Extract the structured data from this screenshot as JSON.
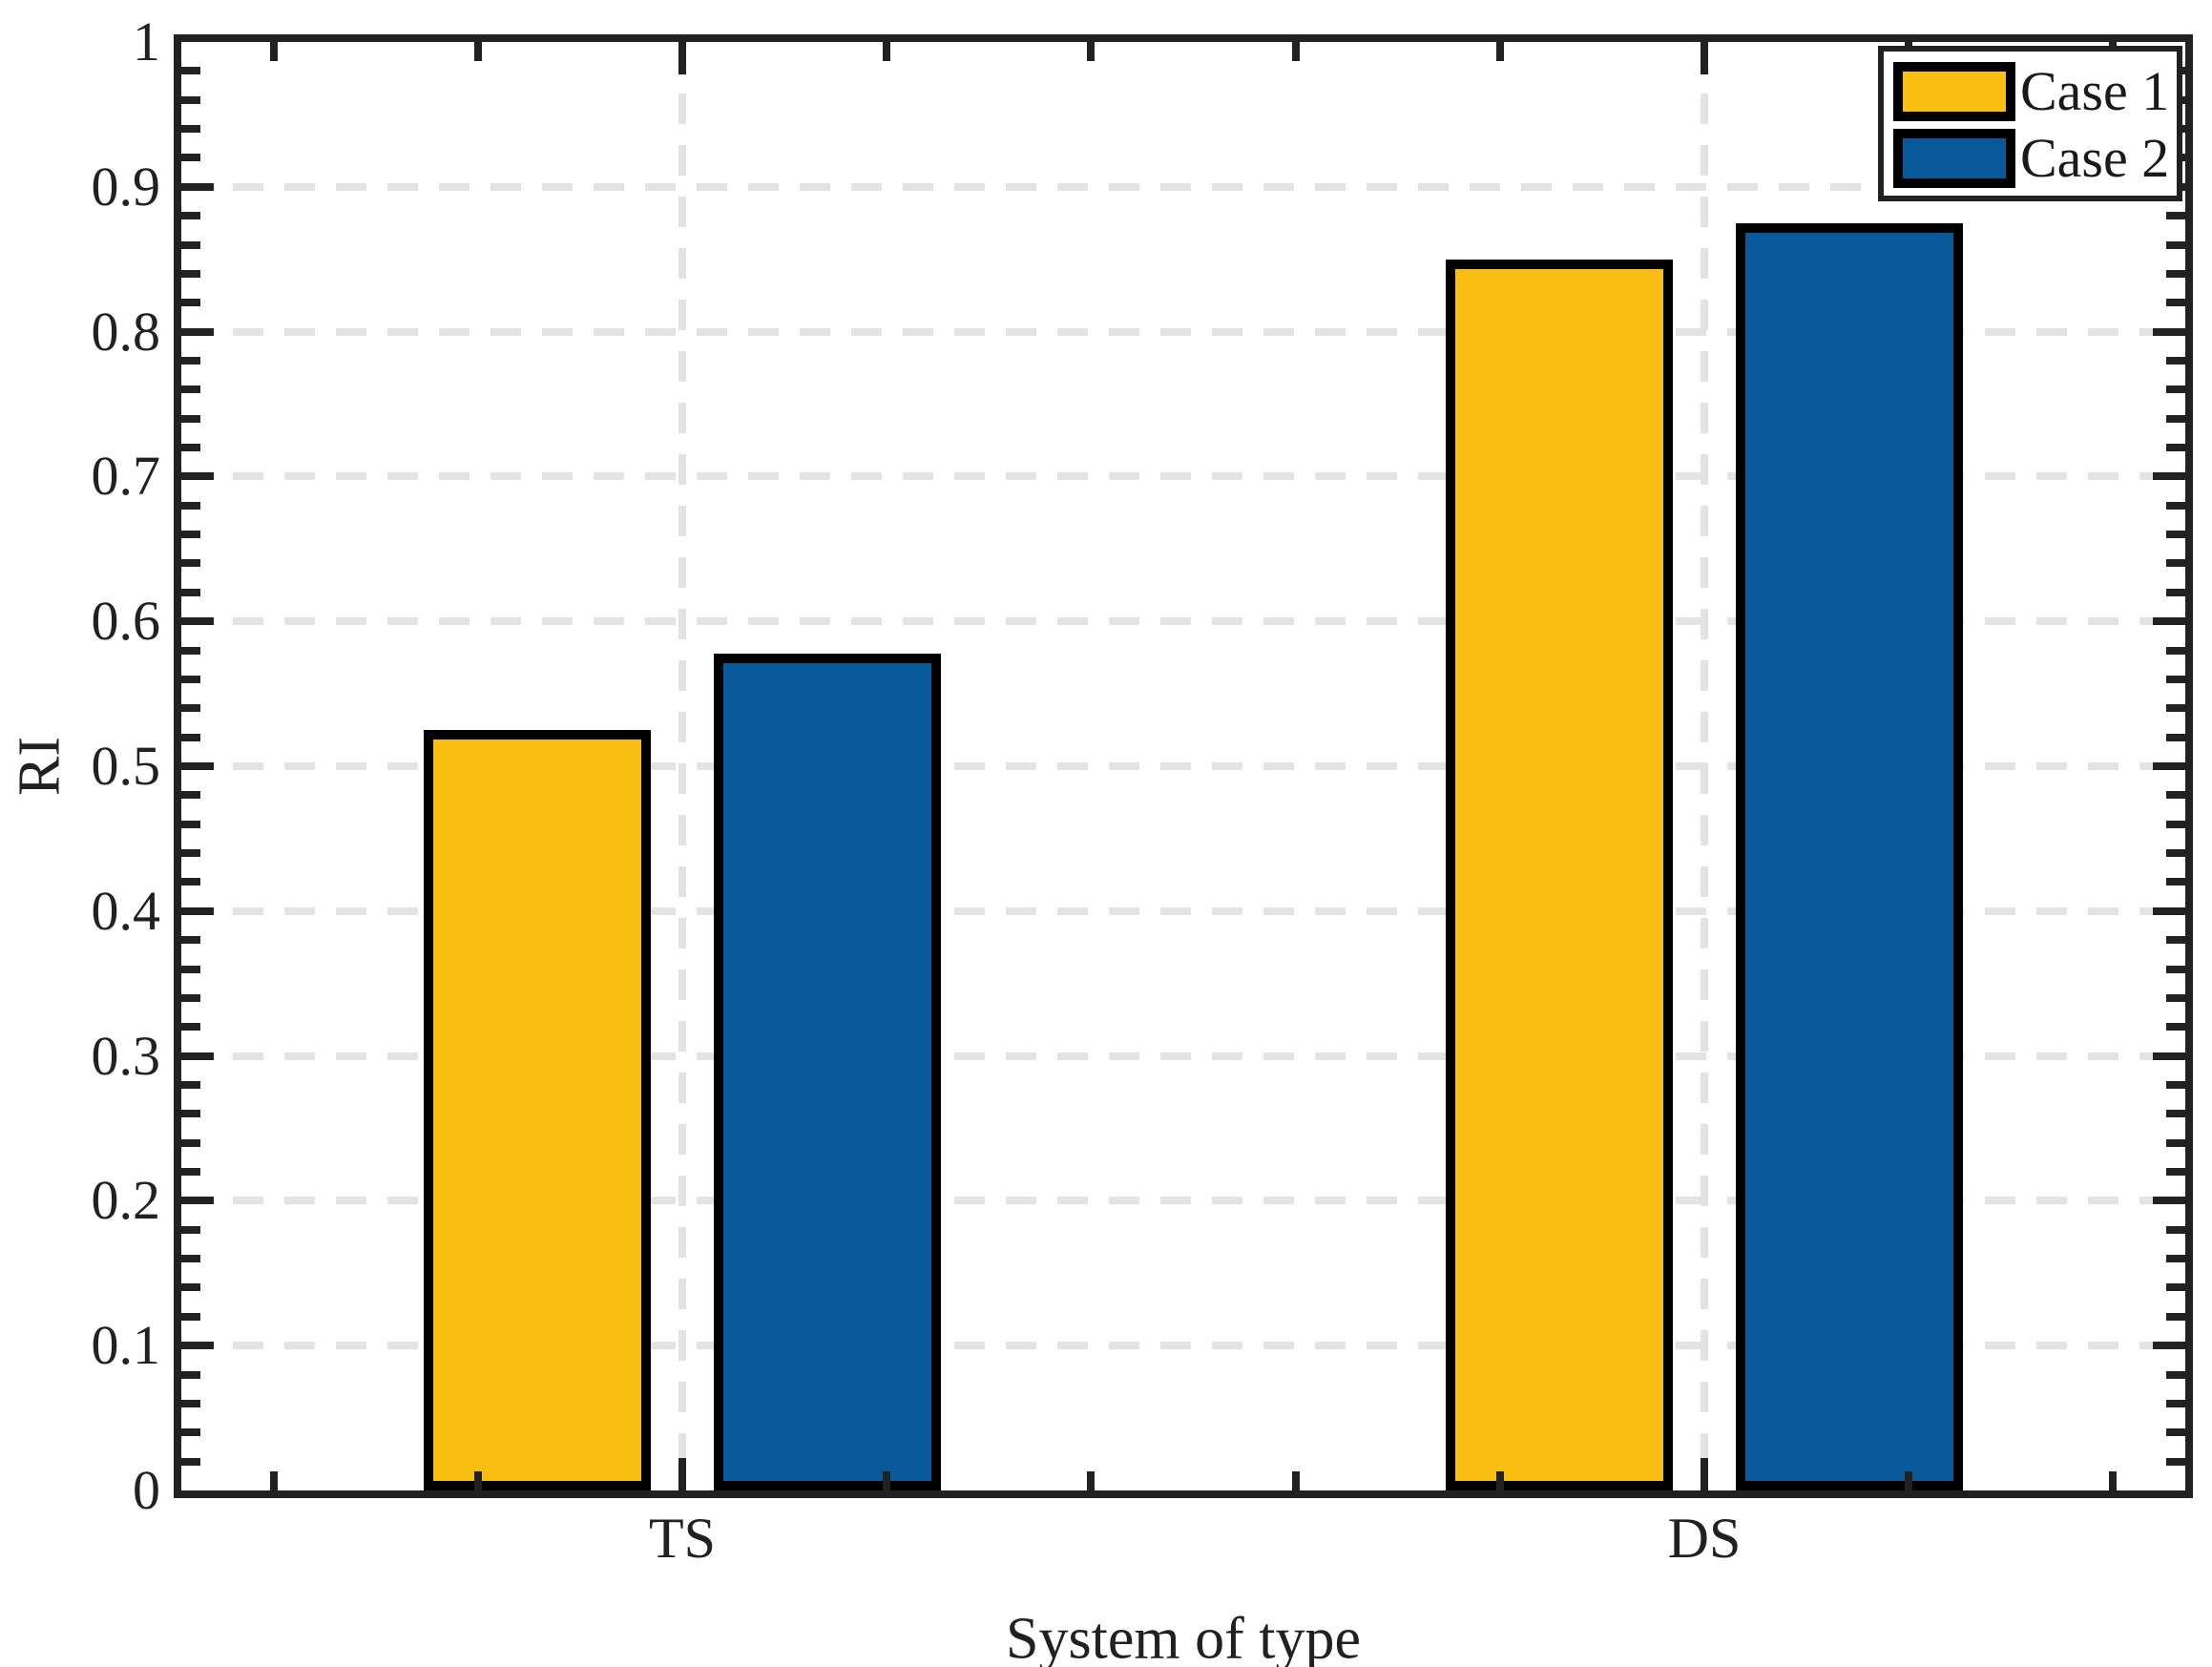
{
  "chart_data": {
    "type": "bar",
    "title": "",
    "xlabel": "System of type",
    "ylabel": "RI",
    "categories": [
      "TS",
      "DS"
    ],
    "series": [
      {
        "name": "Case 1",
        "color": "#F8BF12",
        "values": [
          0.525,
          0.85
        ]
      },
      {
        "name": "Case 2",
        "color": "#075999",
        "values": [
          0.578,
          0.875
        ]
      }
    ],
    "ylim": [
      0,
      1
    ],
    "yticks": [
      0,
      0.1,
      0.2,
      0.3,
      0.4,
      0.5,
      0.6,
      0.7,
      0.8,
      0.9,
      1
    ],
    "ytick_labels": [
      "0",
      "0.1",
      "0.2",
      "0.3",
      "0.4",
      "0.5",
      "0.6",
      "0.7",
      "0.8",
      "0.9",
      "1"
    ],
    "y_minor_tick_step": 0.02,
    "x_minor_tick_step_units": 0.2,
    "grid": {
      "horizontal": true,
      "vertical": true,
      "style": "dashed",
      "color": "#E3E3E3"
    },
    "legend": {
      "position": "top-right",
      "entries": [
        "Case 1",
        "Case 2"
      ]
    },
    "colors": {
      "bar_edge": "#000000",
      "axis": "#212121",
      "background": "#FFFFFF"
    }
  }
}
